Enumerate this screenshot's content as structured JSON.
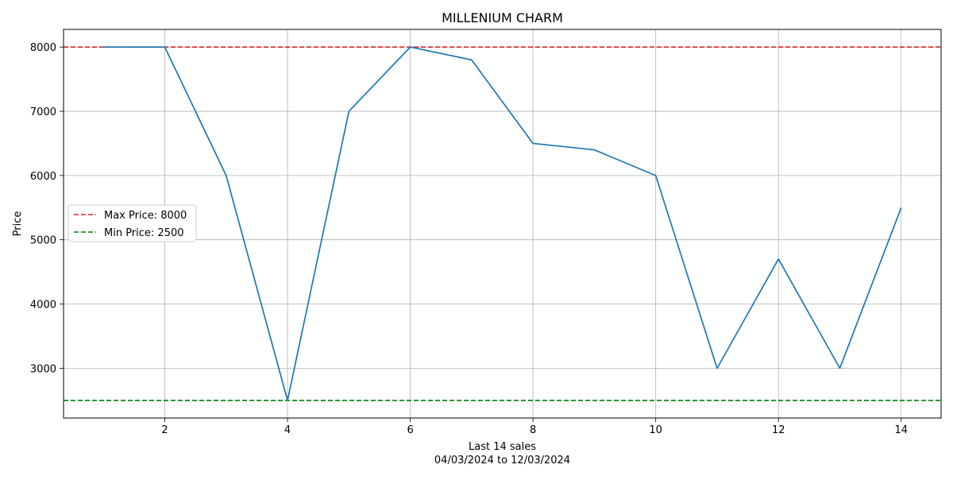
{
  "chart_data": {
    "type": "line",
    "title": "MILLENIUM CHARM",
    "xlabel": "Last 14 sales",
    "xlabel_sub": "04/03/2024 to 12/03/2024",
    "ylabel": "Price",
    "x": [
      1,
      2,
      3,
      4,
      5,
      6,
      7,
      8,
      9,
      10,
      11,
      12,
      13,
      14
    ],
    "series": [
      {
        "values": [
          8000,
          8000,
          6000,
          2500,
          7000,
          8000,
          7800,
          6500,
          6400,
          6000,
          3000,
          4700,
          3000,
          5500
        ],
        "color": "#1f77b4"
      }
    ],
    "reference_lines": [
      {
        "label": "Max Price: 8000",
        "value": 8000,
        "color": "#d62728",
        "style": "dashed"
      },
      {
        "label": "Min Price: 2500",
        "value": 2500,
        "color": "#008000",
        "style": "dashed"
      }
    ],
    "xlim": [
      0.35,
      14.65
    ],
    "ylim": [
      2225,
      8275
    ],
    "xticks": [
      2,
      4,
      6,
      8,
      10,
      12,
      14
    ],
    "yticks": [
      3000,
      4000,
      5000,
      6000,
      7000,
      8000
    ],
    "grid": true,
    "legend_position": "center-left"
  }
}
